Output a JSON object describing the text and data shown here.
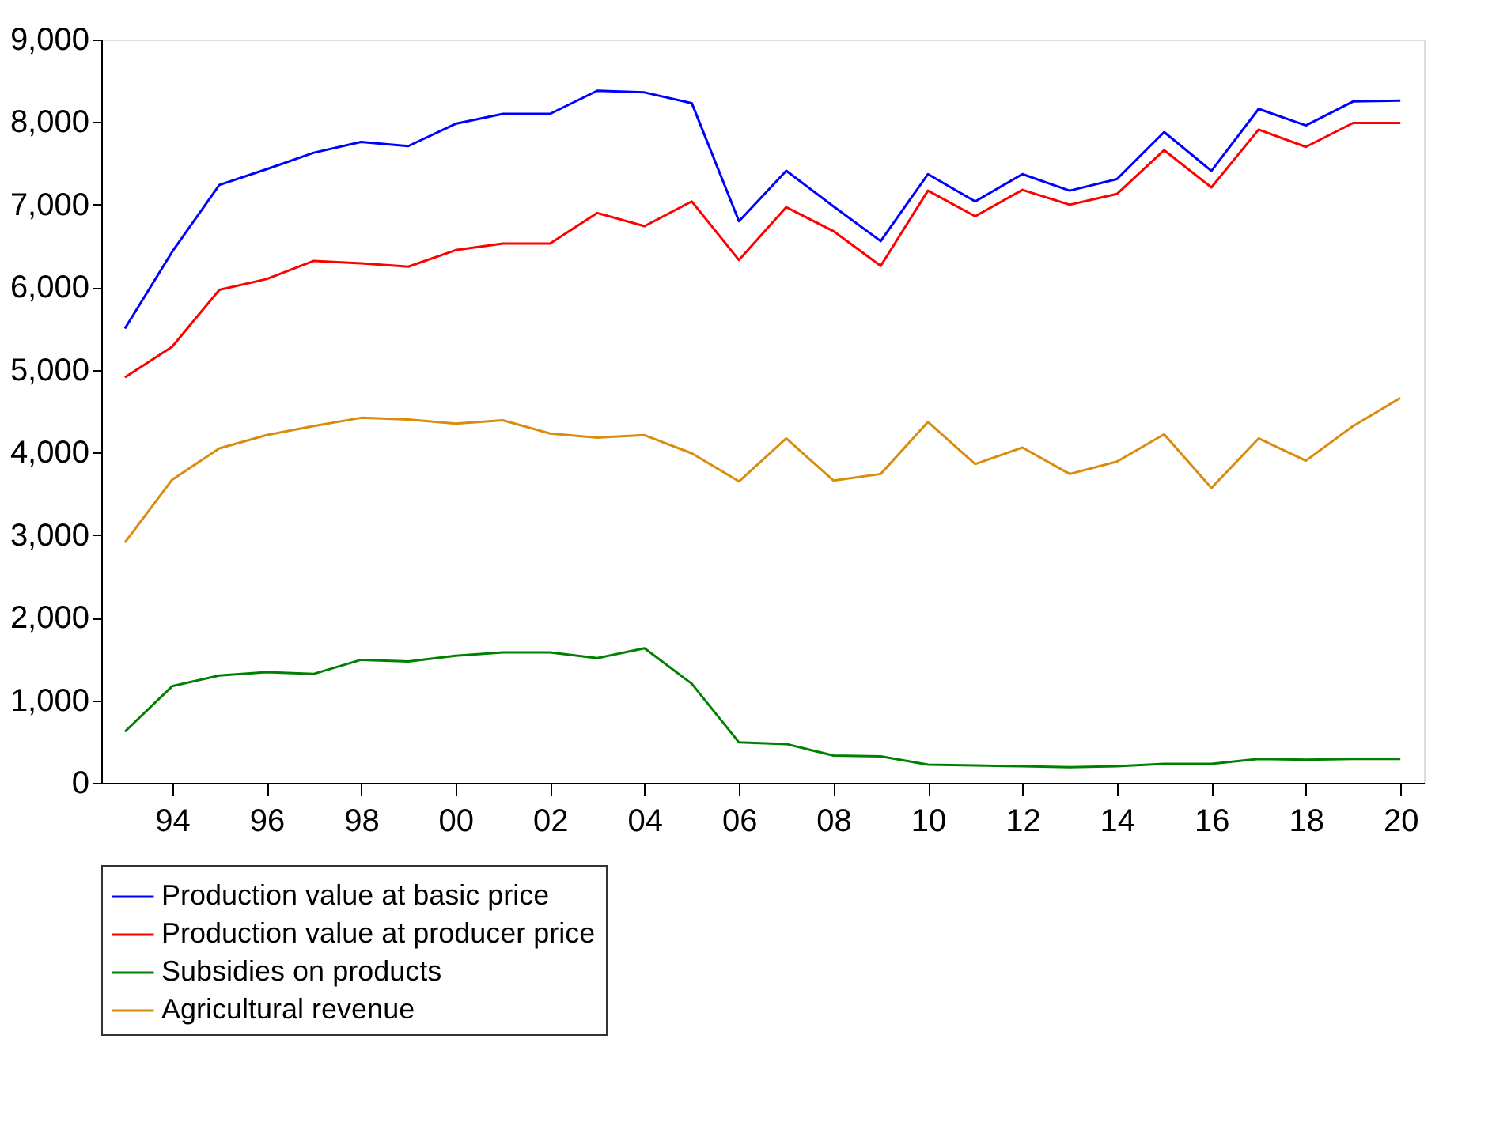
{
  "chart_data": {
    "type": "line",
    "x": [
      1993,
      1994,
      1995,
      1996,
      1997,
      1998,
      1999,
      2000,
      2001,
      2002,
      2003,
      2004,
      2005,
      2006,
      2007,
      2008,
      2009,
      2010,
      2011,
      2012,
      2013,
      2014,
      2015,
      2016,
      2017,
      2018,
      2019,
      2020
    ],
    "series": [
      {
        "name": "Production value at basic price",
        "color": "#0000ff",
        "values": [
          5500,
          6430,
          7240,
          7430,
          7630,
          7760,
          7710,
          7980,
          8100,
          8100,
          8380,
          8360,
          8230,
          6800,
          7410,
          6980,
          6560,
          7370,
          7040,
          7370,
          7170,
          7310,
          7880,
          7410,
          8160,
          7960,
          8250,
          8260
        ]
      },
      {
        "name": "Production value at producer price",
        "color": "#ff0000",
        "values": [
          4910,
          5280,
          5970,
          6100,
          6320,
          6290,
          6250,
          6450,
          6530,
          6530,
          6900,
          6740,
          7040,
          6330,
          6970,
          6680,
          6260,
          7170,
          6860,
          7180,
          7000,
          7130,
          7660,
          7210,
          7910,
          7700,
          7990,
          7990
        ]
      },
      {
        "name": "Subsidies on products",
        "color": "#008000",
        "values": [
          620,
          1170,
          1300,
          1340,
          1320,
          1490,
          1470,
          1540,
          1580,
          1580,
          1510,
          1630,
          1200,
          490,
          470,
          330,
          320,
          220,
          210,
          200,
          190,
          200,
          230,
          230,
          290,
          280,
          290,
          290
        ]
      },
      {
        "name": "Agricultural revenue",
        "color": "#d98c0d",
        "values": [
          2910,
          3670,
          4050,
          4210,
          4320,
          4420,
          4400,
          4350,
          4390,
          4230,
          4180,
          4210,
          3990,
          3650,
          4170,
          3660,
          3740,
          4370,
          3860,
          4060,
          3740,
          3890,
          4220,
          3570,
          4170,
          3900,
          4320,
          4660
        ]
      }
    ],
    "xlim": [
      1992.5,
      2020.5
    ],
    "xticks": [
      {
        "value": 1994,
        "label": "94"
      },
      {
        "value": 1996,
        "label": "96"
      },
      {
        "value": 1998,
        "label": "98"
      },
      {
        "value": 2000,
        "label": "00"
      },
      {
        "value": 2002,
        "label": "02"
      },
      {
        "value": 2004,
        "label": "04"
      },
      {
        "value": 2006,
        "label": "06"
      },
      {
        "value": 2008,
        "label": "08"
      },
      {
        "value": 2010,
        "label": "10"
      },
      {
        "value": 2012,
        "label": "12"
      },
      {
        "value": 2014,
        "label": "14"
      },
      {
        "value": 2016,
        "label": "16"
      },
      {
        "value": 2018,
        "label": "18"
      },
      {
        "value": 2020,
        "label": "20"
      }
    ],
    "ylim": [
      0,
      9000
    ],
    "yticks": [
      0,
      {
        "value": 1000,
        "label": "1,000"
      },
      {
        "value": 2000,
        "label": "2,000"
      },
      {
        "value": 3000,
        "label": "3,000"
      },
      {
        "value": 4000,
        "label": "4,000"
      },
      {
        "value": 5000,
        "label": "5,000"
      },
      {
        "value": 6000,
        "label": "6,000"
      },
      {
        "value": 7000,
        "label": "7,000"
      },
      {
        "value": 8000,
        "label": "8,000"
      },
      {
        "value": 9000,
        "label": "9,000"
      }
    ],
    "grid": false,
    "legend": "bottom",
    "marker": "none",
    "line_style": "solid"
  }
}
